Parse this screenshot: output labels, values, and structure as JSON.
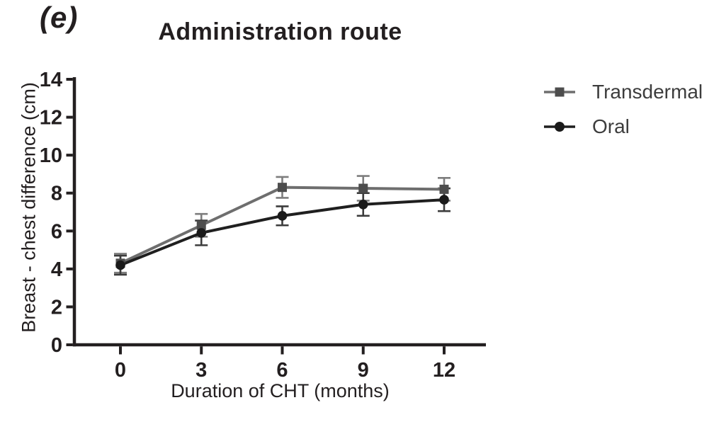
{
  "figure": {
    "panel_label": "(e)",
    "title": "Administration route"
  },
  "legend": {
    "items": [
      {
        "label": "Transdermal",
        "marker": "square"
      },
      {
        "label": "Oral",
        "marker": "circle"
      }
    ]
  },
  "colors": {
    "background": "#ffffff",
    "axis": "#231f20",
    "text": "#231f20",
    "legend_text": "#3d3d3d",
    "transdermal": "#6e6e6e",
    "oral": "#1f1f1f"
  },
  "chart_data": {
    "type": "line",
    "title": "Administration route",
    "xlabel": "Duration of CHT (months)",
    "ylabel": "Breast - chest difference (cm)",
    "x": [
      0,
      3,
      6,
      9,
      12
    ],
    "xticks": [
      0,
      3,
      6,
      9,
      12
    ],
    "yticks": [
      0,
      2,
      4,
      6,
      8,
      10,
      12,
      14
    ],
    "xlim": [
      -1.7,
      13.55
    ],
    "ylim": [
      0,
      14
    ],
    "grid": false,
    "error_bars": true,
    "legend_position": "right-top",
    "series": [
      {
        "name": "Transdermal",
        "marker": "square",
        "line_color": "#6e6e6e",
        "marker_color": "#4d4d4d",
        "error_color": "#7d7d7d",
        "values": [
          4.3,
          6.3,
          8.3,
          8.25,
          8.2
        ],
        "errors": [
          0.5,
          0.6,
          0.55,
          0.65,
          0.6
        ]
      },
      {
        "name": "Oral",
        "marker": "circle",
        "line_color": "#1f1f1f",
        "marker_color": "#1a1a1a",
        "error_color": "#3c3c3c",
        "values": [
          4.2,
          5.9,
          6.8,
          7.4,
          7.65
        ],
        "errors": [
          0.5,
          0.65,
          0.5,
          0.6,
          0.6
        ]
      }
    ]
  }
}
